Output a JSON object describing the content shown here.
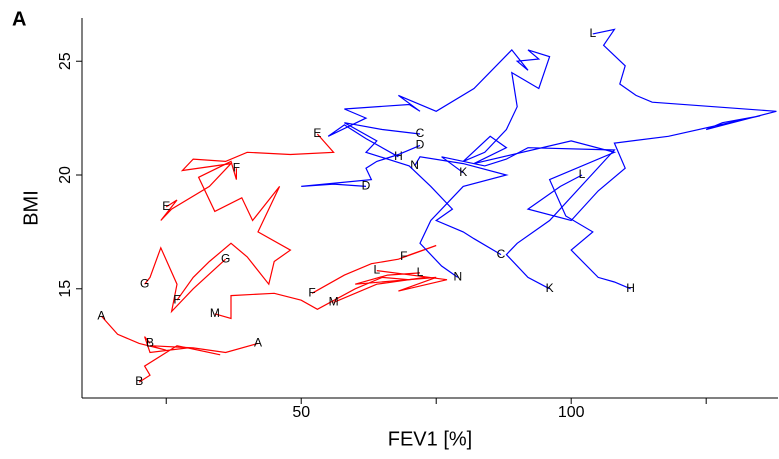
{
  "chart_data": {
    "type": "line",
    "panel_label": "A",
    "x_label": "FEV1 [%]",
    "y_label": "BMI",
    "xlim": [
      9.4,
      138.3
    ],
    "ylim": [
      10.2,
      26.9
    ],
    "xticks": [
      50,
      100
    ],
    "xminor_ticks": [
      25,
      75,
      125
    ],
    "yticks": [
      15,
      20,
      25
    ],
    "series": [
      {
        "name": "A",
        "color": "#ff0000",
        "x": [
          13,
          16,
          20,
          25,
          22,
          30,
          36,
          42
        ],
        "y": [
          13.8,
          13.0,
          12.6,
          12.3,
          12.5,
          12.4,
          12.2,
          12.6
        ]
      },
      {
        "name": "B",
        "color": "#ff0000",
        "x": [
          22,
          21,
          22,
          29,
          35,
          27,
          21,
          22,
          20
        ],
        "y": [
          12.6,
          12.9,
          12.2,
          12.4,
          12.1,
          12.5,
          11.6,
          11.2,
          10.9
        ]
      },
      {
        "name": "M",
        "color": "#ff0000",
        "x": [
          34,
          37,
          37,
          45,
          50,
          53,
          60,
          65,
          70,
          73,
          64,
          56
        ],
        "y": [
          13.9,
          13.7,
          14.7,
          14.8,
          14.5,
          14.1,
          15.0,
          15.5,
          15.4,
          15.5,
          15.2,
          14.4
        ]
      },
      {
        "name": "L",
        "color": "#ff0000",
        "x": [
          72,
          66,
          60,
          75,
          68,
          77,
          64
        ],
        "y": [
          15.7,
          15.6,
          15.2,
          15.5,
          14.9,
          15.4,
          15.8
        ]
      },
      {
        "name": "F",
        "color": "#ff0000",
        "x": [
          69,
          75,
          68,
          63,
          58,
          52
        ],
        "y": [
          16.4,
          16.9,
          16.3,
          16.1,
          15.6,
          14.8
        ]
      },
      {
        "name": "G",
        "color": "#ff0000",
        "x": [
          36,
          30,
          26,
          27,
          24,
          22,
          21
        ],
        "y": [
          16.3,
          15.0,
          14.0,
          15.2,
          16.8,
          15.5,
          15.2
        ]
      },
      {
        "name": "E",
        "color": "#ff0000",
        "x": [
          53,
          56,
          48,
          40,
          36,
          30,
          28,
          37,
          33,
          26,
          24,
          27,
          25
        ],
        "y": [
          21.8,
          21.0,
          20.9,
          21.0,
          20.6,
          20.7,
          20.2,
          20.5,
          19.5,
          18.5,
          18.0,
          18.9,
          18.6
        ]
      },
      {
        "name": "F",
        "color": "#ff0000",
        "x": [
          38,
          38,
          37,
          31,
          34,
          39,
          41,
          46,
          42,
          48,
          45,
          44,
          40,
          37,
          33,
          30,
          27
        ],
        "y": [
          20.3,
          19.8,
          20.6,
          19.9,
          18.4,
          19.0,
          18.0,
          19.5,
          17.5,
          16.7,
          16.2,
          15.2,
          16.4,
          17.0,
          16.2,
          15.5,
          14.5
        ]
      },
      {
        "name": "L",
        "color": "#0000ff",
        "x": [
          104,
          108,
          106,
          110,
          109,
          112,
          115,
          138,
          125,
          128,
          135,
          118,
          108,
          110,
          105,
          100,
          92,
          98,
          102
        ],
        "y": [
          26.2,
          26.4,
          25.7,
          24.8,
          24.0,
          23.5,
          23.2,
          22.8,
          22.0,
          22.3,
          22.6,
          21.7,
          21.4,
          20.3,
          19.3,
          18.0,
          18.5,
          19.5,
          20.0
        ]
      },
      {
        "name": "H",
        "color": "#0000ff",
        "x": [
          68,
          62,
          58,
          55,
          62,
          58,
          70,
          72,
          68,
          75,
          82,
          89,
          92,
          90,
          94,
          92,
          96,
          94,
          89,
          90,
          88,
          84,
          80,
          85,
          88,
          82,
          100,
          108,
          96,
          99,
          104,
          100,
          105,
          108,
          111
        ],
        "y": [
          20.8,
          21.6,
          22.2,
          21.7,
          22.5,
          22.9,
          23.1,
          22.8,
          23.5,
          22.8,
          23.8,
          25.5,
          24.6,
          25.0,
          25.1,
          25.5,
          25.2,
          23.8,
          24.5,
          23.0,
          22.0,
          21.0,
          20.6,
          21.7,
          21.2,
          20.5,
          21.5,
          21.0,
          19.8,
          18.2,
          17.5,
          16.7,
          15.5,
          15.3,
          15.0
        ]
      },
      {
        "name": "K",
        "color": "#0000ff",
        "x": [
          80,
          76,
          84,
          88,
          92,
          108,
          96,
          90,
          88,
          92,
          96
        ],
        "y": [
          20.1,
          20.8,
          20.4,
          20.7,
          21.2,
          21.1,
          18.0,
          17.0,
          16.5,
          15.5,
          15.0
        ]
      },
      {
        "name": "N",
        "color": "#0000ff",
        "x": [
          71,
          72,
          80,
          88,
          80,
          74,
          72,
          76,
          79
        ],
        "y": [
          20.4,
          20.8,
          20.5,
          20.0,
          19.5,
          18.0,
          17.0,
          16.0,
          15.5
        ]
      },
      {
        "name": "C",
        "color": "#0000ff",
        "x": [
          72,
          65,
          58,
          64,
          62,
          70,
          74,
          78,
          75,
          80,
          82,
          87
        ],
        "y": [
          21.8,
          22.0,
          22.3,
          21.5,
          21.0,
          20.4,
          19.5,
          18.5,
          18.0,
          17.5,
          17.2,
          16.5
        ]
      },
      {
        "name": "D",
        "color": "#0000ff",
        "x": [
          62,
          56,
          50,
          63,
          62,
          64,
          68,
          72
        ],
        "y": [
          19.5,
          19.6,
          19.5,
          19.8,
          20.3,
          20.6,
          20.9,
          21.3
        ]
      }
    ]
  }
}
